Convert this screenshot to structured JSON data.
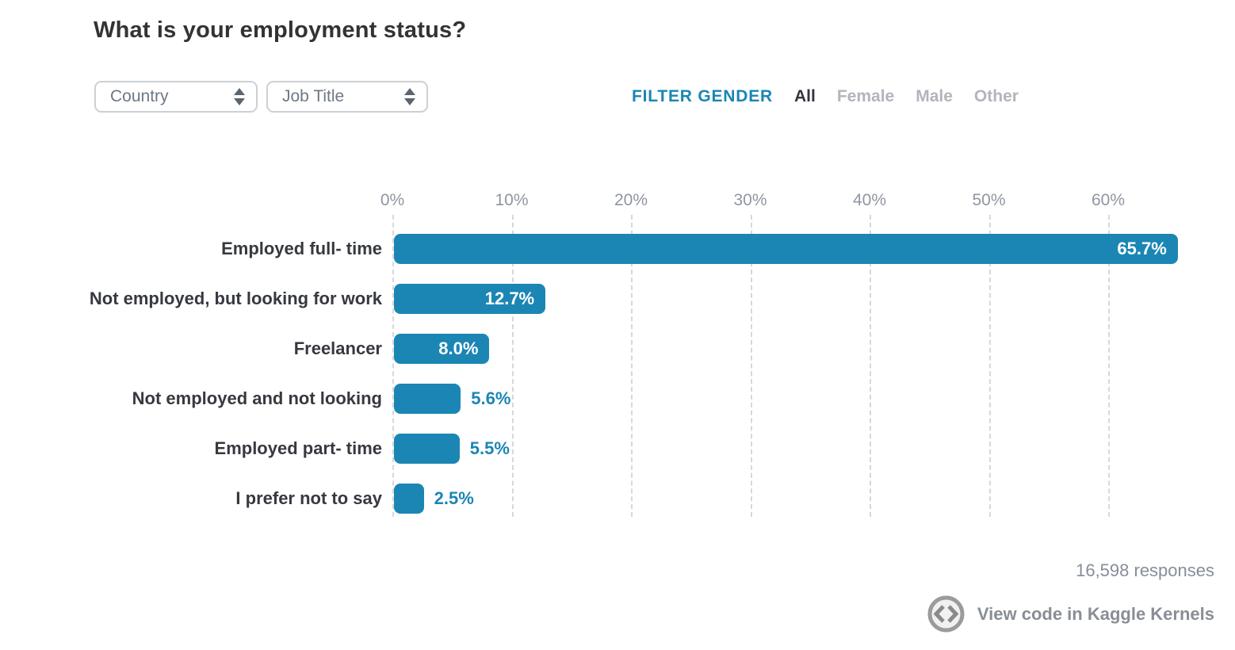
{
  "title": "What is your employment status?",
  "filters": {
    "country_dropdown": {
      "value": "Country"
    },
    "job_title_dropdown": {
      "value": "Job Title"
    },
    "gender": {
      "label": "FILTER GENDER",
      "options": [
        "All",
        "Female",
        "Male",
        "Other"
      ],
      "selected": "All"
    }
  },
  "chart_data": {
    "type": "bar",
    "orientation": "horizontal",
    "title": "What is your employment status?",
    "categories": [
      "Employed full- time",
      "Not employed, but looking for work",
      "Freelancer",
      "Not employed and not looking",
      "Employed part- time",
      "I prefer not to say"
    ],
    "values": [
      65.7,
      12.7,
      8.0,
      5.6,
      5.5,
      2.5
    ],
    "value_labels": [
      "65.7%",
      "12.7%",
      "8.0%",
      "5.6%",
      "5.5%",
      "2.5%"
    ],
    "x_ticks": [
      "0%",
      "10%",
      "20%",
      "30%",
      "40%",
      "50%",
      "60%"
    ],
    "x_tick_values": [
      0,
      10,
      20,
      30,
      40,
      50,
      60
    ],
    "xlim": [
      0,
      69
    ],
    "grid": "dashed-vertical",
    "legend": "none",
    "colors": {
      "bar": "#1b86b4",
      "inside_value_label": "#ffffff",
      "outside_value_label": "#1b86b4",
      "gridline": "#d6d8da",
      "axis_text": "#8f96a1"
    }
  },
  "footer": {
    "responses": "16,598 responses",
    "kernels_link": "View code in Kaggle Kernels"
  },
  "icons": {
    "country_spinner": "up-down-arrows-icon",
    "job_title_spinner": "up-down-arrows-icon",
    "kernels": "code-circle-icon"
  }
}
